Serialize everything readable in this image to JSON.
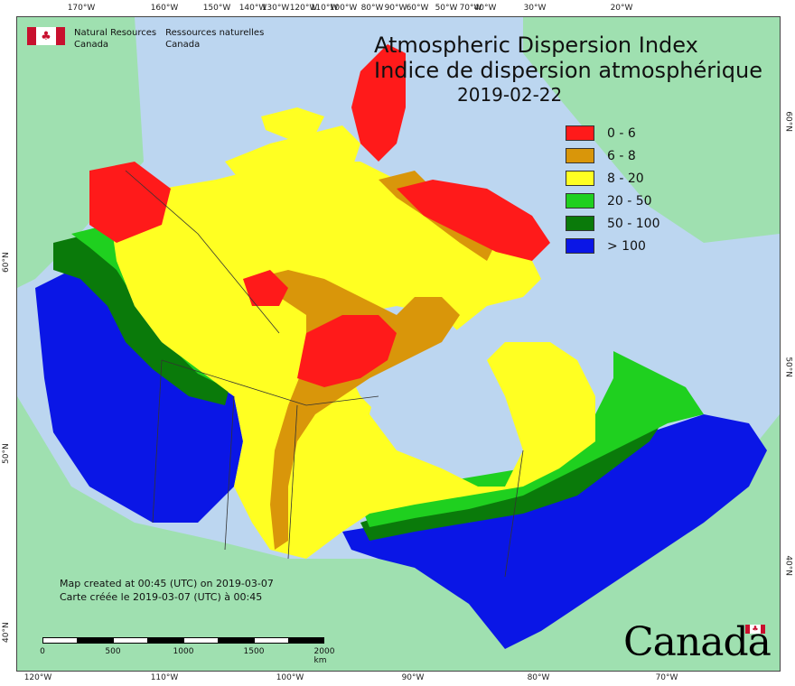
{
  "map": {
    "title_en": "Atmospheric Dispersion Index",
    "title_fr": "Indice de dispersion atmosphérique",
    "date": "2019-02-22",
    "agency_en_line1": "Natural Resources",
    "agency_en_line2": "Canada",
    "agency_fr_line1": "Ressources naturelles",
    "agency_fr_line2": "Canada",
    "credit_en": "Map created at 00:45 (UTC) on 2019-03-07",
    "credit_fr": "Carte créée le 2019-03-07 (UTC) à 00:45",
    "wordmark": "Canada",
    "flag_glyph": "♣"
  },
  "legend": [
    {
      "label": "0 - 6",
      "color": "#ff1a1a"
    },
    {
      "label": "6 - 8",
      "color": "#d9960a"
    },
    {
      "label": "8 - 20",
      "color": "#ffff22"
    },
    {
      "label": "20 - 50",
      "color": "#1fd01f"
    },
    {
      "label": "50 - 100",
      "color": "#0a7a0a"
    },
    {
      "label": "> 100",
      "color": "#0a16e6"
    }
  ],
  "colors": {
    "ocean": "#bcd6f0",
    "land_outside": "#9fe0b0"
  },
  "scalebar": {
    "unit": "km",
    "labels": [
      "0",
      "500",
      "1000",
      "1500",
      "2000"
    ]
  },
  "graticule": {
    "top": [
      "170°W",
      "160°W",
      "150°W",
      "140°W",
      "120°W",
      "100°W",
      "80°W",
      "60°W",
      "50°W",
      "40°W",
      "30°W",
      "20°W"
    ],
    "bottom": [
      "120°W",
      "110°W",
      "100°W",
      "90°W",
      "80°W",
      "70°W"
    ],
    "left": [
      "60°N",
      "50°N",
      "40°N"
    ],
    "right": [
      "60°N",
      "50°N",
      "40°N"
    ],
    "top_extra": [
      "130°W",
      "110°W",
      "90°W",
      "70°W"
    ]
  }
}
